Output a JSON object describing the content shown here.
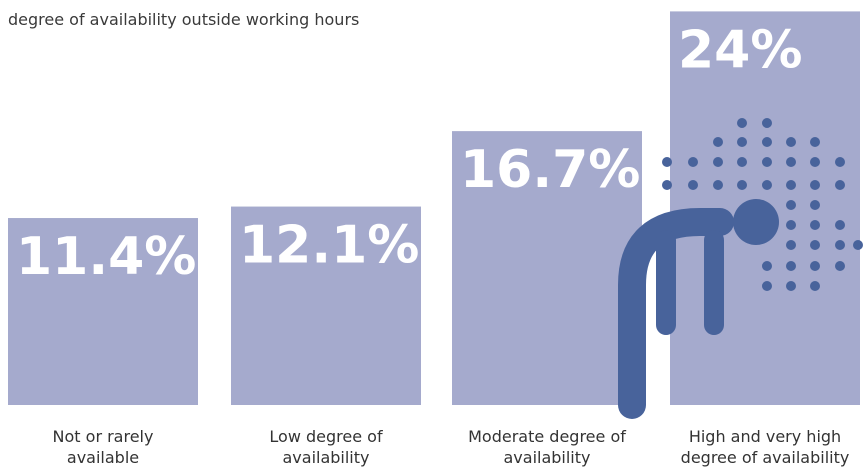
{
  "chart_data": {
    "type": "bar",
    "title": "degree of availability outside working hours",
    "categories": [
      "Not or rarely available",
      "Low degree of availability",
      "Moderate degree of availability",
      "High and very high degree of availability"
    ],
    "values": [
      11.4,
      12.1,
      16.7,
      24
    ],
    "value_labels": [
      "11.4%",
      "12.1%",
      "16.7%",
      "24%"
    ],
    "color": "#a5aacd"
  }
}
